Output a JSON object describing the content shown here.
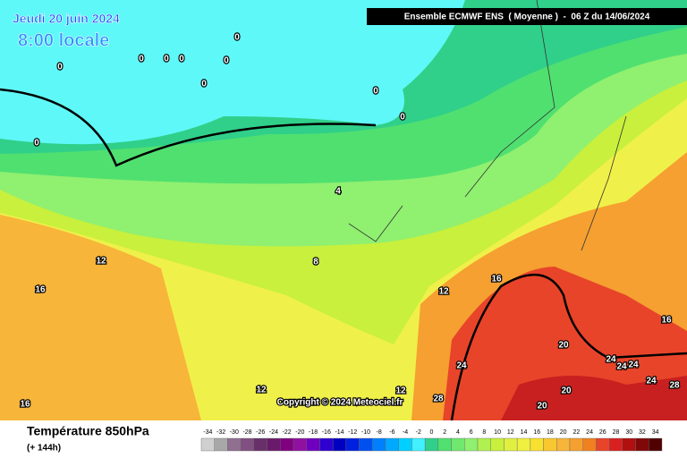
{
  "header": {
    "date": "Jeudi 20 juin 2024",
    "time": "8:00 locale",
    "model": "Ensemble ECMWF ENS  ( Moyenne )  -  06 Z du 14/06/2024"
  },
  "map": {
    "copyright": "Copyright © 2024 Meteociel.fr",
    "contour_labels": [
      0,
      0,
      0,
      0,
      0,
      0,
      0,
      0,
      0,
      0,
      4,
      12,
      16,
      8,
      12,
      16,
      16,
      20,
      24,
      24,
      24,
      24,
      24,
      28,
      20,
      20,
      28,
      12,
      12,
      16
    ]
  },
  "legend": {
    "title": "Température 850hPa",
    "lead": "(+ 144h)",
    "scale": [
      -34,
      -32,
      -30,
      -28,
      -26,
      -24,
      -22,
      -20,
      -18,
      -16,
      -14,
      -12,
      -10,
      -8,
      -6,
      -4,
      -2,
      0,
      2,
      4,
      6,
      8,
      10,
      12,
      14,
      16,
      18,
      20,
      22,
      24,
      26,
      28,
      30,
      32,
      34
    ],
    "colors": [
      "#d0d0d0",
      "#a8a8a8",
      "#907090",
      "#805080",
      "#683068",
      "#6a1a6a",
      "#800080",
      "#9010a0",
      "#7000c0",
      "#3000d0",
      "#0000c0",
      "#0020e0",
      "#0050f0",
      "#0080ff",
      "#00a8ff",
      "#00d0ff",
      "#40f0ff",
      "#30d08a",
      "#50e070",
      "#70e870",
      "#90f070",
      "#b0f050",
      "#c8f03c",
      "#e0f040",
      "#f0f040",
      "#f8e030",
      "#f8c830",
      "#f7b53a",
      "#f5a030",
      "#f08020",
      "#e8442a",
      "#d82020",
      "#b01010",
      "#800808",
      "#500000"
    ]
  }
}
